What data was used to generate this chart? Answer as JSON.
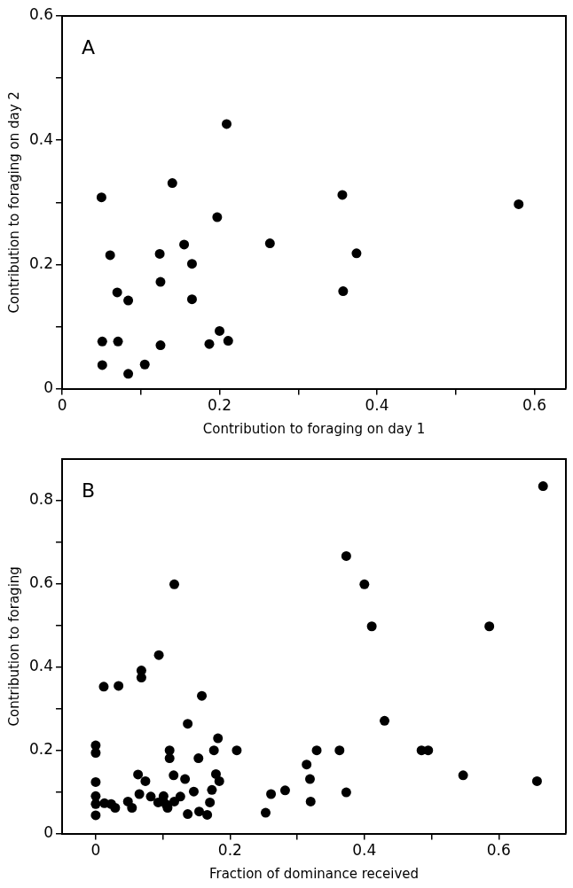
{
  "chart_data": [
    {
      "type": "scatter",
      "title": "A",
      "xlabel": "Contribution to foraging on day 1",
      "ylabel": "Contribution to foraging on day 2",
      "marker": "circle",
      "grid": false,
      "xlim": [
        0,
        0.64
      ],
      "ylim": [
        0,
        0.6
      ],
      "xticks": [
        0,
        {
          "value": 0.1,
          "label": null
        },
        0.2,
        {
          "value": 0.3,
          "label": null
        },
        0.4,
        {
          "value": 0.5,
          "label": null
        },
        0.6
      ],
      "yticks": [
        0,
        {
          "value": 0.1,
          "label": null
        },
        0.2,
        {
          "value": 0.3,
          "label": null
        },
        0.4,
        {
          "value": 0.5,
          "label": null
        },
        0.6
      ],
      "series": [
        {
          "color": "#000000",
          "x": [
            0.05,
            0.209,
            0.14,
            0.356,
            0.58,
            0.197,
            0.155,
            0.264,
            0.061,
            0.124,
            0.165,
            0.374,
            0.125,
            0.07,
            0.084,
            0.165,
            0.357,
            0.051,
            0.071,
            0.125,
            0.187,
            0.2,
            0.211,
            0.051,
            0.084,
            0.105
          ],
          "values": [
            0.308,
            0.426,
            0.331,
            0.312,
            0.297,
            0.276,
            0.232,
            0.234,
            0.215,
            0.217,
            0.201,
            0.218,
            0.172,
            0.155,
            0.142,
            0.144,
            0.157,
            0.076,
            0.076,
            0.07,
            0.072,
            0.093,
            0.077,
            0.038,
            0.024,
            0.039
          ]
        }
      ]
    },
    {
      "type": "scatter",
      "title": "B",
      "xlabel": "Fraction of dominance received",
      "ylabel": "Contribution to foraging",
      "marker": "circle",
      "grid": false,
      "xlim": [
        -0.05,
        0.7
      ],
      "ylim": [
        0,
        0.9
      ],
      "xticks": [
        0,
        {
          "value": 0.1,
          "label": null
        },
        0.2,
        {
          "value": 0.3,
          "label": null
        },
        0.4,
        {
          "value": 0.5,
          "label": null
        },
        0.6
      ],
      "yticks": [
        0,
        {
          "value": 0.1,
          "label": null
        },
        0.2,
        {
          "value": 0.3,
          "label": null
        },
        0.4,
        {
          "value": 0.5,
          "label": null
        },
        0.6,
        {
          "value": 0.7,
          "label": null
        },
        0.8
      ],
      "series": [
        {
          "color": "#000000",
          "x": [
            0.666,
            0.373,
            0.4,
            0.117,
            0.411,
            0.586,
            0.094,
            0.068,
            0.068,
            0.012,
            0.034,
            0.158,
            0.137,
            0.43,
            0.182,
            0,
            0,
            0.11,
            0.11,
            0.153,
            0.176,
            0.21,
            0.329,
            0.363,
            0.485,
            0.495,
            0.314,
            0.319,
            0.547,
            0.657,
            0.373,
            0.32,
            0.282,
            0.261,
            0.253,
            0,
            0,
            0,
            0,
            0.013,
            0.023,
            0.029,
            0.048,
            0.054,
            0.063,
            0.074,
            0.065,
            0.082,
            0.093,
            0.101,
            0.107,
            0.117,
            0.126,
            0.116,
            0.133,
            0.146,
            0.137,
            0.154,
            0.166,
            0.17,
            0.173,
            0.179,
            0.184,
            0.1,
            0.105
          ],
          "values": [
            0.835,
            0.667,
            0.599,
            0.599,
            0.498,
            0.498,
            0.429,
            0.392,
            0.375,
            0.353,
            0.355,
            0.331,
            0.264,
            0.271,
            0.229,
            0.212,
            0.194,
            0.2,
            0.181,
            0.181,
            0.2,
            0.2,
            0.2,
            0.2,
            0.2,
            0.2,
            0.166,
            0.131,
            0.14,
            0.126,
            0.099,
            0.077,
            0.104,
            0.095,
            0.05,
            0.124,
            0.09,
            0.071,
            0.044,
            0.073,
            0.071,
            0.062,
            0.077,
            0.062,
            0.142,
            0.126,
            0.095,
            0.089,
            0.075,
            0.09,
            0.062,
            0.077,
            0.089,
            0.14,
            0.131,
            0.101,
            0.047,
            0.053,
            0.045,
            0.075,
            0.105,
            0.143,
            0.126,
            0.08,
            0.07
          ]
        }
      ]
    }
  ]
}
